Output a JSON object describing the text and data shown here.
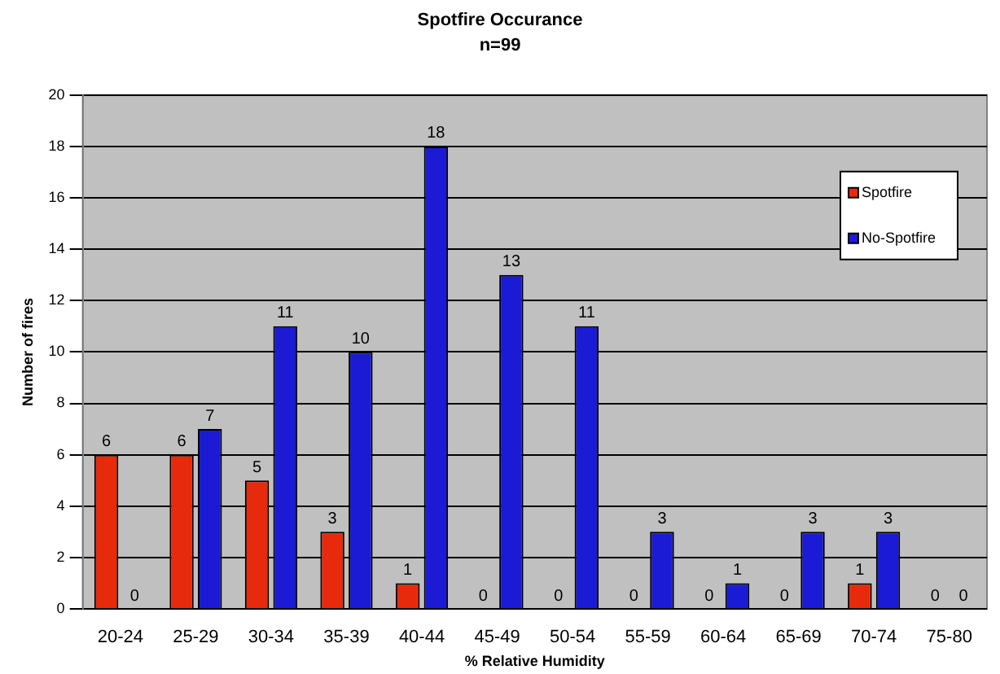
{
  "chart_data": {
    "type": "bar",
    "title": "Spotfire Occurance",
    "subtitle": "n=99",
    "xlabel": "% Relative Humidity",
    "ylabel": "Number of fires",
    "categories": [
      "20-24",
      "25-29",
      "30-34",
      "35-39",
      "40-44",
      "45-49",
      "50-54",
      "55-59",
      "60-64",
      "65-69",
      "70-74",
      "75-80"
    ],
    "series": [
      {
        "name": "Spotfire",
        "color": "#e82a0c",
        "values": [
          6,
          6,
          5,
          3,
          1,
          0,
          0,
          0,
          0,
          0,
          1,
          0
        ]
      },
      {
        "name": "No-Spotfire",
        "color": "#1b1bd6",
        "values": [
          0,
          7,
          11,
          10,
          18,
          13,
          11,
          3,
          1,
          3,
          3,
          0
        ]
      }
    ],
    "ylim": [
      0,
      20
    ],
    "yticks": [
      0,
      2,
      4,
      6,
      8,
      10,
      12,
      14,
      16,
      18,
      20
    ],
    "grid": "y",
    "legend": "top right",
    "data_labels": true
  }
}
